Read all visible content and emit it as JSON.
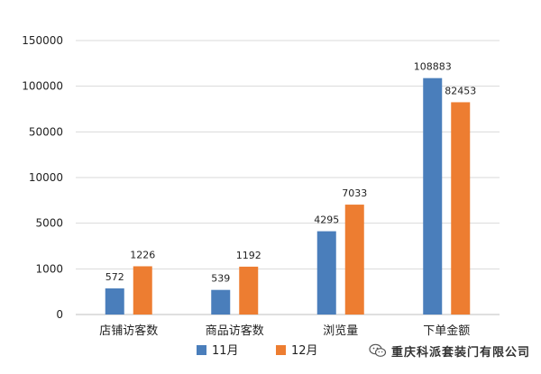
{
  "chart_data": {
    "type": "bar",
    "categories": [
      "店铺访客数",
      "商品访客数",
      "浏览量",
      "下单金额"
    ],
    "series": [
      {
        "name": "11月",
        "color": "#4a7ebb",
        "values": [
          572,
          539,
          4295,
          108883
        ]
      },
      {
        "name": "12月",
        "color": "#ed7d31",
        "values": [
          1226,
          1192,
          7033,
          82453
        ]
      }
    ],
    "y_ticks": [
      0,
      1000,
      5000,
      10000,
      50000,
      100000,
      150000
    ],
    "y_tick_labels": [
      "0",
      "1000",
      "5000",
      "10000",
      "50000",
      "100000",
      "150000"
    ],
    "data_labels": [
      [
        "572",
        "1226"
      ],
      [
        "539",
        "1192"
      ],
      [
        "4295",
        "7033"
      ],
      [
        "108883",
        "82453"
      ]
    ],
    "ylim": [
      0,
      150000
    ],
    "y_scale": "non-uniform (ticks equally spaced)",
    "grid": true,
    "legend_position": "bottom-center",
    "title": "",
    "xlabel": "",
    "ylabel": ""
  },
  "watermark": {
    "icon": "wechat-icon",
    "text": "重庆科派套装门有限公司"
  }
}
